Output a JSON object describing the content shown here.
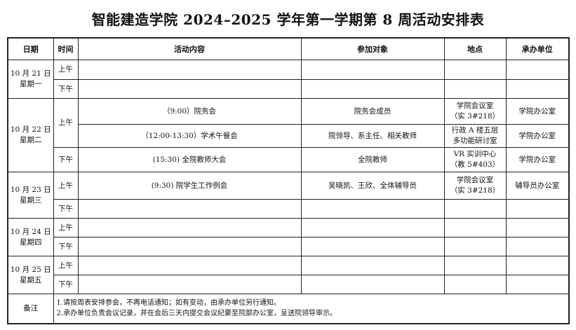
{
  "title": "智能建造学院 2024–2025 学年第一学期第 8 周活动安排表",
  "headers": {
    "date": "日期",
    "time": "时间",
    "content": "活动内容",
    "participants": "参加对象",
    "location": "地点",
    "organizer": "承办单位"
  },
  "days": [
    {
      "date": "10 月 21 日",
      "weekday": "星期一",
      "am": "上午",
      "pm": "下午"
    },
    {
      "date": "10 月 22 日",
      "weekday": "星期二",
      "am": "上午",
      "pm": "下午",
      "events": [
        {
          "content": "（9:00）院务会",
          "participants": "院务会成员",
          "location1": "学院会议室",
          "location2": "（实 3#218）",
          "organizer": "学院办公室"
        },
        {
          "content": "（12:00-13:30）学术午餐会",
          "participants": "院领导、系主任、相关教师",
          "location1": "行政 A 楼五层",
          "location2": "多功能研讨室",
          "organizer": "学院办公室"
        },
        {
          "content": "(15:30) 全院教师大会",
          "participants": "全院教师",
          "location1": "VR 实训中心",
          "location2": "（教 5#403）",
          "organizer": "学院办公室"
        }
      ]
    },
    {
      "date": "10 月 23 日",
      "weekday": "星期三",
      "am": "上午",
      "pm": "下午",
      "events": [
        {
          "content": "(9:30) 院学生工作例会",
          "participants": "吴晓凯、王欣、全体辅导员",
          "location1": "学院会议室",
          "location2": "（实 3#218）",
          "organizer": "辅导员办公室"
        }
      ]
    },
    {
      "date": "10 月 24 日",
      "weekday": "星期四",
      "am": "上午",
      "pm": "下午"
    },
    {
      "date": "10 月 25 日",
      "weekday": "星期五",
      "am": "上午",
      "pm": "下午"
    }
  ],
  "notes": {
    "label": "备注",
    "line1": "1.请按周表安排参会，不再电话通知；如有变动，由承办单位另行通知。",
    "line2": "2.承办单位负责会议记录，并在会后三天内提交会议纪要至院部办公室，呈送院领导审示。"
  }
}
